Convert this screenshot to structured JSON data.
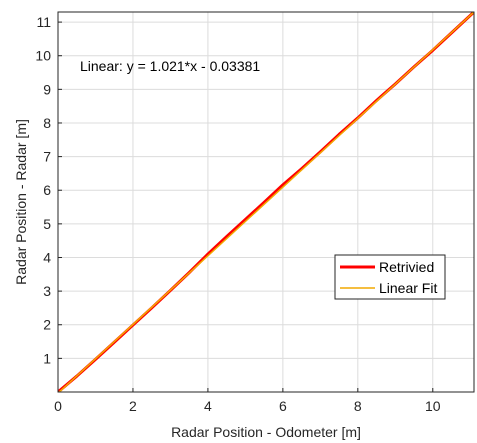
{
  "chart_data": {
    "type": "line",
    "title": "",
    "xlabel": "Radar Position - Odometer [m]",
    "ylabel": "Radar Position - Radar [m]",
    "xlim": [
      0,
      11.1
    ],
    "ylim": [
      0,
      11.3
    ],
    "xticks": [
      "0",
      "2",
      "4",
      "6",
      "8",
      "10"
    ],
    "yticks": [
      "1",
      "2",
      "3",
      "4",
      "5",
      "6",
      "7",
      "8",
      "9",
      "10",
      "11"
    ],
    "grid": true,
    "legend_position": "right-middle",
    "annotation": "Linear:  y = 1.021*x - 0.03381",
    "series": [
      {
        "name": "Retrivied",
        "color": "#ff0000",
        "x": [
          0,
          0.5,
          1.0,
          1.5,
          2.0,
          2.5,
          3.0,
          3.5,
          4.0,
          4.5,
          5.0,
          5.5,
          6.0,
          6.5,
          7.0,
          7.5,
          8.0,
          8.5,
          9.0,
          9.5,
          10.0,
          10.5,
          11.1
        ],
        "y": [
          0,
          0.47,
          0.97,
          1.48,
          1.99,
          2.5,
          3.02,
          3.55,
          4.1,
          4.62,
          5.13,
          5.64,
          6.16,
          6.64,
          7.14,
          7.66,
          8.15,
          8.67,
          9.16,
          9.67,
          10.16,
          10.68,
          11.3
        ]
      },
      {
        "name": "Linear Fit",
        "color": "#f2a900",
        "fit": {
          "slope": 1.021,
          "intercept": -0.03381
        }
      }
    ]
  }
}
